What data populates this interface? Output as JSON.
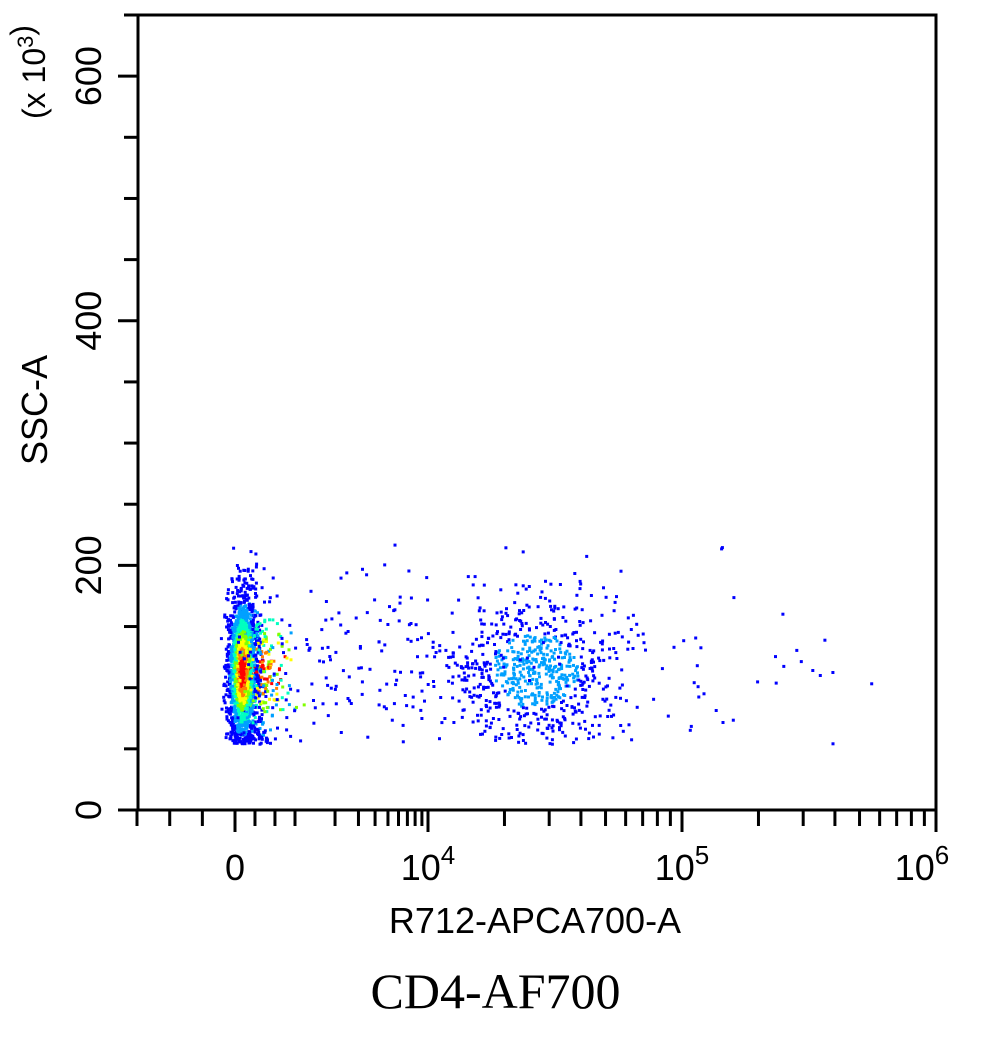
{
  "chart_data": {
    "type": "scatter",
    "subtype": "flow-cytometry-density-dot-plot",
    "xlabel": "R712-APCA700-A",
    "ylabel": "SSC-A",
    "y_multiplier": "(x 10",
    "y_multiplier_exp": "3",
    "x_scale": "biexponential",
    "ylim": [
      0,
      650
    ],
    "y_ticks": [
      {
        "value": 0,
        "label": "0"
      },
      {
        "value": 200,
        "label": "200"
      },
      {
        "value": 400,
        "label": "400"
      },
      {
        "value": 600,
        "label": "600"
      }
    ],
    "x_ticks": [
      {
        "value": 0,
        "base": "0",
        "exp": ""
      },
      {
        "value": 10000,
        "base": "10",
        "exp": "4"
      },
      {
        "value": 100000,
        "base": "10",
        "exp": "5"
      },
      {
        "value": 1000000,
        "base": "10",
        "exp": "6"
      }
    ],
    "grid": false,
    "colormap": [
      "#0000ff",
      "#00a0ff",
      "#00ffc0",
      "#80ff00",
      "#ffff00",
      "#ff8000",
      "#ff0000"
    ],
    "populations": [
      {
        "x_center": 100,
        "y_center": 115,
        "x_spread_decades": 0.15,
        "y_sd": 30,
        "share": 0.7,
        "peak_density": 1.0
      },
      {
        "x_center": 26000,
        "y_center": 115,
        "x_spread_decades": 0.16,
        "y_sd": 28,
        "share": 0.22,
        "peak_density": 0.25
      },
      {
        "x_center": 8000,
        "y_center": 130,
        "x_spread_decades": 0.9,
        "y_sd": 40,
        "share": 0.08,
        "peak_density": 0.05
      }
    ]
  },
  "caption": "CD4-AF700"
}
